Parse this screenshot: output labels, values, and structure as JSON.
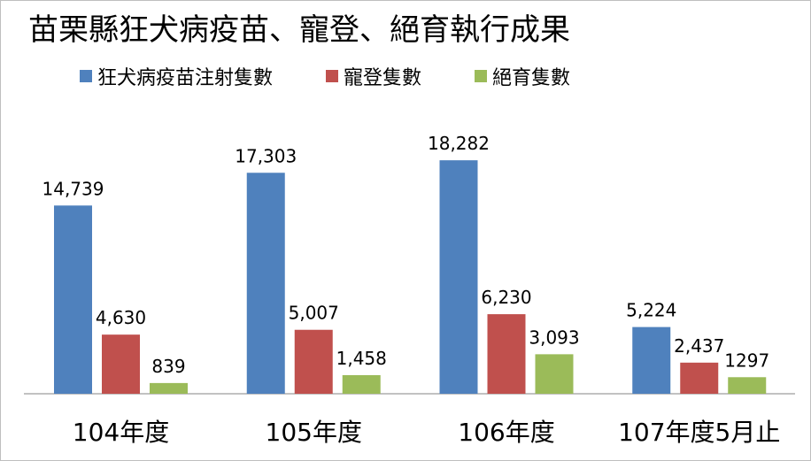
{
  "chart_data": {
    "type": "bar",
    "title": "苗栗縣狂犬病疫苗、寵登、絕育執行成果",
    "categories": [
      "104年度",
      "105年度",
      "106年度",
      "107年度5月止"
    ],
    "series": [
      {
        "name": "狂犬病疫苗注射隻數",
        "color": "#4f81bd",
        "values": [
          14739,
          17303,
          18282,
          5224
        ],
        "labels": [
          "14,739",
          "17,303",
          "18,282",
          "5,224"
        ]
      },
      {
        "name": "寵登隻數",
        "color": "#c0504d",
        "values": [
          4630,
          5007,
          6230,
          2437
        ],
        "labels": [
          "4,630",
          "5,007",
          "6,230",
          "2,437"
        ]
      },
      {
        "name": "絕育隻數",
        "color": "#9bbb59",
        "values": [
          839,
          1458,
          3093,
          1297
        ],
        "labels": [
          "839",
          "1,458",
          "3,093",
          "1297"
        ]
      }
    ],
    "ylim": [
      0,
      20000
    ],
    "grid": false,
    "legend_position": "top"
  }
}
